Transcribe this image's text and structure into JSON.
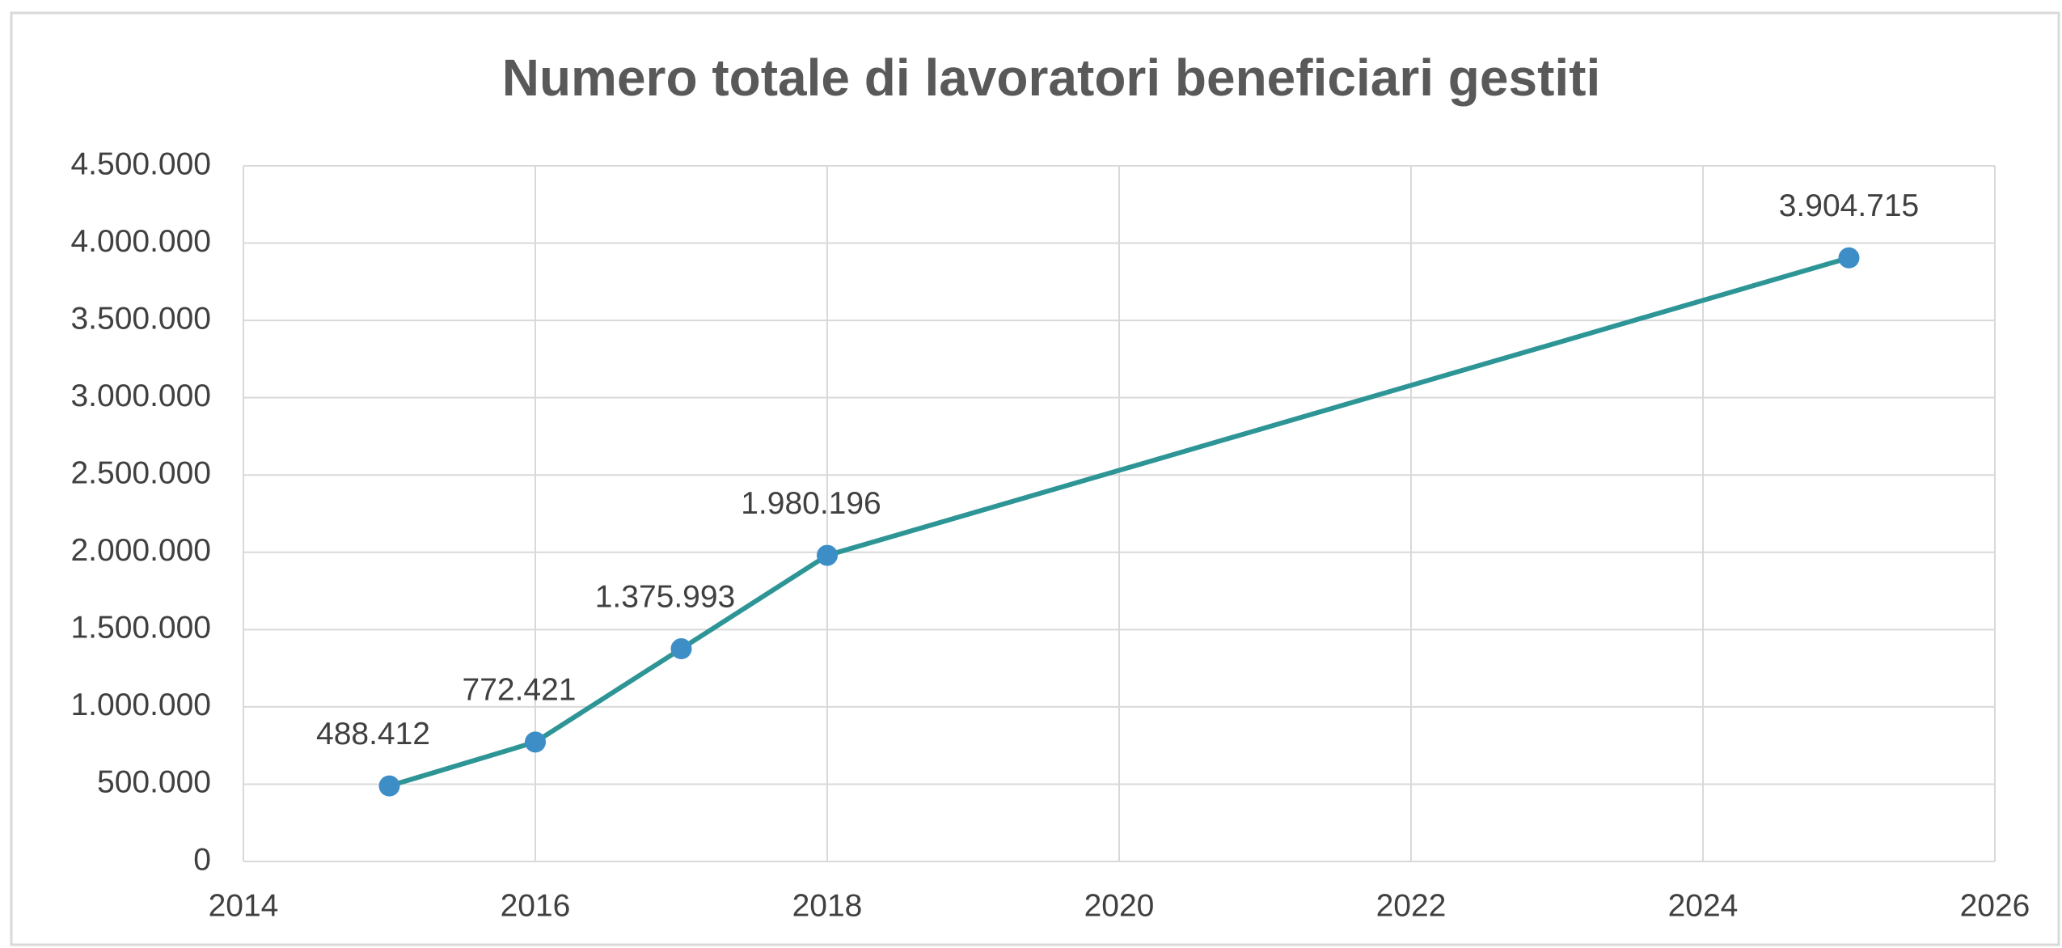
{
  "chart_data": {
    "type": "line",
    "title": "Numero totale di lavoratori beneficiari gestiti",
    "x": [
      2015,
      2016,
      2017,
      2018,
      2025
    ],
    "values": [
      488412,
      772421,
      1375993,
      1980196,
      3904715
    ],
    "value_labels": [
      "488.412",
      "772.421",
      "1.375.993",
      "1.980.196",
      "3.904.715"
    ],
    "color": "#2e9596",
    "marker_color": "#3d8ec7",
    "xlim": [
      2014,
      2026
    ],
    "xticks": [
      2014,
      2016,
      2018,
      2020,
      2022,
      2024,
      2026
    ],
    "ylim": [
      0,
      4500000
    ],
    "yticks": [
      0,
      {
        "value": 500000,
        "label": "500.000"
      },
      {
        "value": 1000000,
        "label": "1.000.000"
      },
      {
        "value": 1500000,
        "label": "1.500.000"
      },
      {
        "value": 2000000,
        "label": "2.000.000"
      },
      {
        "value": 2500000,
        "label": "2.500.000"
      },
      {
        "value": 3000000,
        "label": "3.000.000"
      },
      {
        "value": 3500000,
        "label": "3.500.000"
      },
      {
        "value": 4000000,
        "label": "4.000.000"
      },
      {
        "value": 4500000,
        "label": "4.500.000"
      }
    ],
    "grid": true
  }
}
